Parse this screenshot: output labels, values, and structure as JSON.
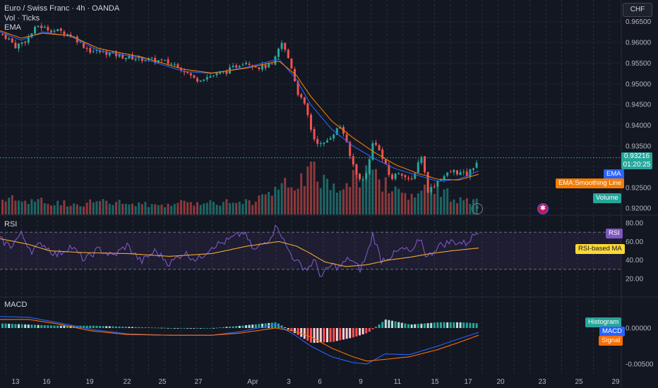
{
  "header": {
    "symbol": "Euro / Swiss Franc · 4h · OANDA",
    "vol": "Vol · Ticks",
    "ema": "EMA",
    "rsi": "RSI",
    "macd": "MACD",
    "currency": "CHF"
  },
  "price": {
    "last": "0.93216",
    "countdown": "01:20:25",
    "color": "#26a69a"
  },
  "labels": {
    "ema": "EMA",
    "ema_smooth": "EMA:Smoothing Line",
    "volume": "Volume",
    "rsi": "RSI",
    "rsi_ma": "RSI-based MA",
    "histogram": "Histogram",
    "macd": "MACD",
    "signal": "Signal"
  },
  "colors": {
    "up": "#26a69a",
    "down": "#ef5350",
    "ema": "#2962ff",
    "ema_smooth": "#f57c00",
    "rsi": "#7e57c2",
    "rsi_ma": "#fdd835",
    "macd": "#2962ff",
    "signal": "#ff6d00"
  },
  "chart_data": {
    "type": "candlestick",
    "price_axis": {
      "ticks": [
        "0.96500",
        "0.96000",
        "0.95500",
        "0.95000",
        "0.94500",
        "0.94000",
        "0.93500",
        "0.93000",
        "0.92500",
        "0.92000"
      ],
      "min": 0.9185,
      "max": 0.9668
    },
    "rsi_axis": {
      "ticks": [
        "80.00",
        "60.00",
        "40.00",
        "20.00"
      ],
      "band": [
        30,
        70
      ]
    },
    "macd_axis": {
      "ticks": [
        "0.00000",
        "-0.00500"
      ]
    },
    "x_ticks": [
      "13",
      "16",
      "19",
      "22",
      "25",
      "27",
      "Apr",
      "3",
      "6",
      "9",
      "11",
      "15",
      "17",
      "20",
      "23",
      "25",
      "29"
    ],
    "price_anchors": [
      [
        0,
        0.962
      ],
      [
        10,
        0.961
      ],
      [
        20,
        0.959
      ],
      [
        35,
        0.9605
      ],
      [
        52,
        0.964
      ],
      [
        70,
        0.963
      ],
      [
        88,
        0.9625
      ],
      [
        105,
        0.961
      ],
      [
        125,
        0.958
      ],
      [
        150,
        0.9575
      ],
      [
        175,
        0.9565
      ],
      [
        200,
        0.956
      ],
      [
        225,
        0.9555
      ],
      [
        250,
        0.9545
      ],
      [
        275,
        0.951
      ],
      [
        300,
        0.952
      ],
      [
        320,
        0.953
      ],
      [
        345,
        0.9555
      ],
      [
        365,
        0.954
      ],
      [
        385,
        0.9545
      ],
      [
        397,
        0.96
      ],
      [
        410,
        0.955
      ],
      [
        420,
        0.948
      ],
      [
        432,
        0.944
      ],
      [
        442,
        0.937
      ],
      [
        455,
        0.935
      ],
      [
        470,
        0.938
      ],
      [
        482,
        0.94
      ],
      [
        495,
        0.932
      ],
      [
        510,
        0.926
      ],
      [
        520,
        0.93
      ],
      [
        528,
        0.937
      ],
      [
        540,
        0.932
      ],
      [
        552,
        0.927
      ],
      [
        565,
        0.929
      ],
      [
        580,
        0.926
      ],
      [
        595,
        0.933
      ],
      [
        605,
        0.924
      ],
      [
        620,
        0.927
      ],
      [
        640,
        0.929
      ],
      [
        660,
        0.928
      ],
      [
        678,
        0.9322
      ]
    ],
    "ema_anchors": [
      [
        0,
        0.9625
      ],
      [
        30,
        0.9605
      ],
      [
        60,
        0.9625
      ],
      [
        100,
        0.9615
      ],
      [
        140,
        0.958
      ],
      [
        200,
        0.9562
      ],
      [
        260,
        0.953
      ],
      [
        300,
        0.9525
      ],
      [
        350,
        0.954
      ],
      [
        395,
        0.956
      ],
      [
        420,
        0.951
      ],
      [
        440,
        0.945
      ],
      [
        470,
        0.939
      ],
      [
        500,
        0.935
      ],
      [
        530,
        0.932
      ],
      [
        560,
        0.9295
      ],
      [
        590,
        0.928
      ],
      [
        620,
        0.9265
      ],
      [
        650,
        0.927
      ],
      [
        678,
        0.929
      ]
    ],
    "ema_smooth_anchors": [
      [
        0,
        0.9628
      ],
      [
        30,
        0.961
      ],
      [
        60,
        0.9622
      ],
      [
        100,
        0.9616
      ],
      [
        140,
        0.9585
      ],
      [
        200,
        0.9565
      ],
      [
        260,
        0.9535
      ],
      [
        300,
        0.9526
      ],
      [
        350,
        0.9538
      ],
      [
        395,
        0.9555
      ],
      [
        420,
        0.952
      ],
      [
        440,
        0.947
      ],
      [
        470,
        0.941
      ],
      [
        500,
        0.937
      ],
      [
        530,
        0.9335
      ],
      [
        560,
        0.9305
      ],
      [
        590,
        0.9285
      ],
      [
        620,
        0.927
      ],
      [
        650,
        0.9268
      ],
      [
        678,
        0.9282
      ]
    ],
    "rsi_anchors": [
      [
        0,
        62
      ],
      [
        15,
        55
      ],
      [
        30,
        68
      ],
      [
        45,
        50
      ],
      [
        60,
        58
      ],
      [
        80,
        45
      ],
      [
        100,
        55
      ],
      [
        120,
        40
      ],
      [
        140,
        52
      ],
      [
        160,
        44
      ],
      [
        180,
        56
      ],
      [
        200,
        38
      ],
      [
        220,
        50
      ],
      [
        240,
        36
      ],
      [
        260,
        48
      ],
      [
        280,
        40
      ],
      [
        300,
        55
      ],
      [
        320,
        60
      ],
      [
        345,
        70
      ],
      [
        360,
        50
      ],
      [
        380,
        62
      ],
      [
        393,
        78
      ],
      [
        405,
        55
      ],
      [
        420,
        38
      ],
      [
        435,
        30
      ],
      [
        445,
        40
      ],
      [
        455,
        22
      ],
      [
        470,
        35
      ],
      [
        480,
        32
      ],
      [
        495,
        42
      ],
      [
        510,
        30
      ],
      [
        520,
        46
      ],
      [
        528,
        68
      ],
      [
        540,
        40
      ],
      [
        555,
        45
      ],
      [
        570,
        52
      ],
      [
        585,
        48
      ],
      [
        595,
        65
      ],
      [
        605,
        42
      ],
      [
        620,
        55
      ],
      [
        640,
        60
      ],
      [
        660,
        58
      ],
      [
        678,
        72
      ]
    ],
    "rsi_ma_anchors": [
      [
        0,
        63
      ],
      [
        40,
        57
      ],
      [
        70,
        50
      ],
      [
        120,
        48
      ],
      [
        180,
        47
      ],
      [
        240,
        44
      ],
      [
        300,
        47
      ],
      [
        350,
        55
      ],
      [
        395,
        60
      ],
      [
        420,
        55
      ],
      [
        440,
        47
      ],
      [
        460,
        38
      ],
      [
        490,
        33
      ],
      [
        520,
        35
      ],
      [
        550,
        40
      ],
      [
        580,
        43
      ],
      [
        610,
        47
      ],
      [
        640,
        50
      ],
      [
        678,
        53
      ]
    ],
    "macd_anchors": [
      [
        0,
        0.0016
      ],
      [
        40,
        0.0015
      ],
      [
        80,
        0.0008
      ],
      [
        130,
        -0.0002
      ],
      [
        180,
        -0.0008
      ],
      [
        240,
        -0.001
      ],
      [
        300,
        -0.001
      ],
      [
        340,
        -0.0005
      ],
      [
        390,
        0.0005
      ],
      [
        415,
        -0.0008
      ],
      [
        440,
        -0.0025
      ],
      [
        470,
        -0.004
      ],
      [
        500,
        -0.0048
      ],
      [
        520,
        -0.005
      ],
      [
        545,
        -0.0036
      ],
      [
        580,
        -0.0037
      ],
      [
        620,
        -0.0025
      ],
      [
        650,
        -0.0015
      ],
      [
        678,
        -0.0006
      ]
    ],
    "signal_anchors": [
      [
        0,
        0.0012
      ],
      [
        40,
        0.0012
      ],
      [
        80,
        0.0006
      ],
      [
        130,
        -0.0004
      ],
      [
        180,
        -0.0009
      ],
      [
        240,
        -0.001
      ],
      [
        300,
        -0.001
      ],
      [
        340,
        -0.0007
      ],
      [
        390,
        0.0
      ],
      [
        415,
        -0.0004
      ],
      [
        440,
        -0.0012
      ],
      [
        470,
        -0.0028
      ],
      [
        500,
        -0.004
      ],
      [
        520,
        -0.0046
      ],
      [
        550,
        -0.0043
      ],
      [
        580,
        -0.004
      ],
      [
        620,
        -0.003
      ],
      [
        650,
        -0.002
      ],
      [
        678,
        -0.001
      ]
    ],
    "macd_range": [
      -0.006,
      0.003
    ],
    "volume_anchors": [
      [
        0,
        0.35
      ],
      [
        50,
        0.3
      ],
      [
        100,
        0.25
      ],
      [
        150,
        0.28
      ],
      [
        200,
        0.22
      ],
      [
        250,
        0.24
      ],
      [
        300,
        0.3
      ],
      [
        350,
        0.28
      ],
      [
        395,
        0.55
      ],
      [
        420,
        0.8
      ],
      [
        440,
        1.0
      ],
      [
        460,
        0.7
      ],
      [
        480,
        0.65
      ],
      [
        500,
        0.85
      ],
      [
        520,
        0.95
      ],
      [
        540,
        0.75
      ],
      [
        560,
        0.55
      ],
      [
        580,
        0.45
      ],
      [
        600,
        0.55
      ],
      [
        620,
        0.48
      ],
      [
        640,
        0.42
      ],
      [
        660,
        0.28
      ],
      [
        678,
        0.3
      ]
    ]
  }
}
